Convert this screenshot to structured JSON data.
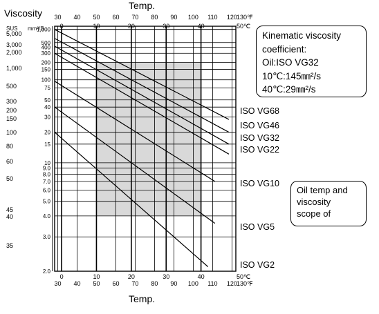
{
  "chart_data": {
    "type": "line",
    "title": "",
    "left_label": "Viscosity",
    "top_label": "Temp.",
    "bottom_label": "Temp.",
    "sus_unit": "SUS",
    "mm_unit": "mm²/S",
    "celsius_unit": "50℃",
    "fahrenheit_unit": "130℉",
    "fahrenheit_ticks": [
      "30",
      "40",
      "50",
      "60",
      "70",
      "80",
      "90",
      "100",
      "110",
      "120"
    ],
    "celsius_ticks": [
      "0",
      "10",
      "20",
      "30",
      "40"
    ],
    "mm_ticks": [
      "1,000",
      "500",
      "400",
      "300",
      "200",
      "150",
      "100",
      "75",
      "50",
      "40",
      "30",
      "20",
      "15",
      "10",
      "9.0",
      "8.0",
      "7.0",
      "6.0",
      "5.0",
      "4.0",
      "3.0",
      "2.0"
    ],
    "sus_ticks": [
      "5,000",
      "3,000",
      "2,000",
      "1,000",
      "500",
      "300",
      "200",
      "150",
      "100",
      "80",
      "60",
      "50",
      "45",
      "40",
      "35"
    ],
    "xlim_celsius": [
      -2,
      50
    ],
    "ylim_mm2s": [
      2,
      1200
    ],
    "series": [
      {
        "name": "ISO VG68",
        "x": [
          -2,
          48
        ],
        "y": [
          1000,
          28
        ]
      },
      {
        "name": "ISO VG46",
        "x": [
          -2,
          48
        ],
        "y": [
          620,
          20
        ]
      },
      {
        "name": "ISO VG32",
        "x": [
          -2,
          48
        ],
        "y": [
          420,
          15
        ]
      },
      {
        "name": "ISO VG22",
        "x": [
          -2,
          48
        ],
        "y": [
          300,
          12
        ]
      },
      {
        "name": "ISO VG10",
        "x": [
          -2,
          44
        ],
        "y": [
          95,
          7
        ]
      },
      {
        "name": "ISO VG5",
        "x": [
          -2,
          44
        ],
        "y": [
          40,
          3.6
        ]
      },
      {
        "name": "ISO VG2",
        "x": [
          -2,
          42
        ],
        "y": [
          20,
          2.1
        ]
      }
    ],
    "shaded_region": {
      "x": [
        10,
        40
      ],
      "y": [
        4,
        200
      ]
    }
  },
  "annotations": {
    "kinematic": [
      "Kinematic viscosity",
      "coefficient:",
      "Oil:ISO VG32",
      "10℃:145㎜²/s",
      "40℃:29㎜²/s"
    ],
    "oil_scope": [
      "Oil temp and",
      "viscosity",
      "scope of"
    ]
  },
  "colors": {
    "line": "#000000",
    "grid": "#000000",
    "shade": "#d9d9d9",
    "background": "#ffffff"
  }
}
